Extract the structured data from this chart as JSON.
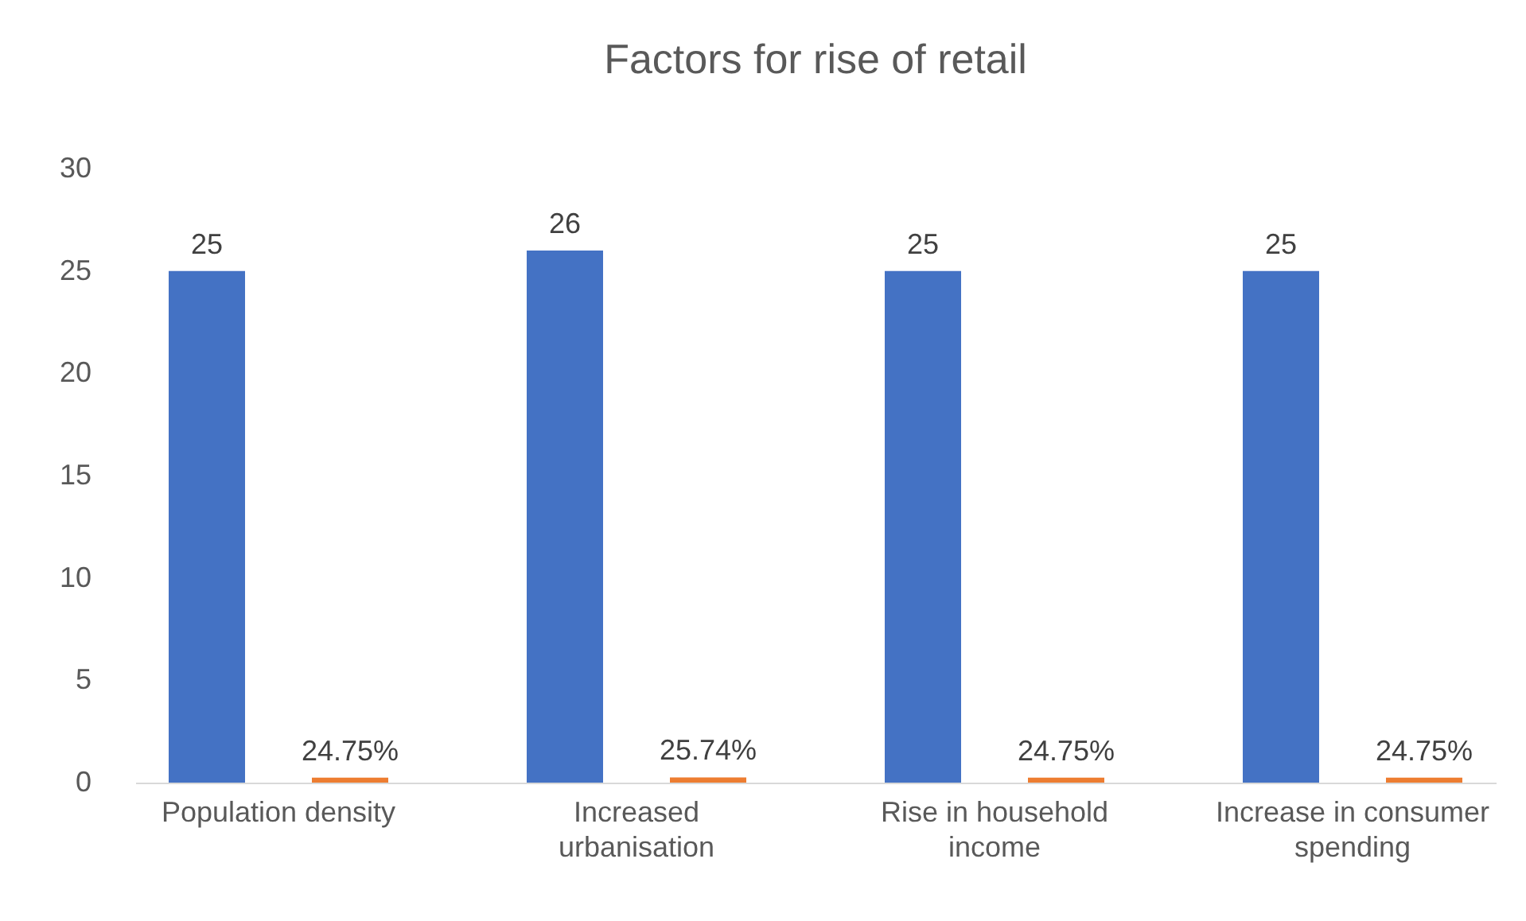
{
  "chart_data": {
    "type": "bar",
    "title": "Factors for rise of retail",
    "categories": [
      "Population density",
      "Increased urbanisation",
      "Rise in household income",
      "Increase in consumer spending"
    ],
    "series": [
      {
        "color": "#4472c4",
        "values": [
          25,
          26,
          25,
          25
        ],
        "value_labels": [
          "25",
          "26",
          "25",
          "25"
        ]
      },
      {
        "color": "#ed7d31",
        "values": [
          0.2475,
          0.2574,
          0.2475,
          0.2475
        ],
        "value_labels": [
          "24.75%",
          "25.74%",
          "24.75%",
          "24.75%"
        ]
      }
    ],
    "ylim": [
      0,
      30
    ],
    "yticks": [
      0,
      5,
      10,
      15,
      20,
      25,
      30
    ],
    "grid": false
  }
}
